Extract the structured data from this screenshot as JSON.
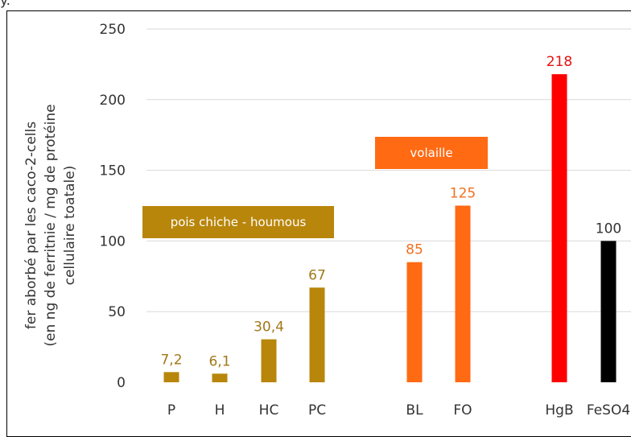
{
  "top_fragment": "y.",
  "chart_data": {
    "type": "bar",
    "ylabel": [
      "fer aborbé par les caco-2-cells",
      "(en ng de ferritnie / mg de protéine",
      "cellulaire toatale)"
    ],
    "ylim": [
      0,
      250
    ],
    "yticks": [
      0,
      50,
      100,
      150,
      200,
      250
    ],
    "grid": true,
    "categories": [
      "P",
      "H",
      "HC",
      "PC",
      "BL",
      "FO",
      "HgB",
      "FeSO4"
    ],
    "values": [
      7.2,
      6.1,
      30.4,
      67,
      85,
      125,
      218,
      100
    ],
    "data_labels": [
      "7,2",
      "6,1",
      "30,4",
      "67",
      "85",
      "125",
      "218",
      "100"
    ],
    "colors": [
      "#b8860b",
      "#b8860b",
      "#b8860b",
      "#b8860b",
      "#ff6a13",
      "#ff6a13",
      "#ff0000",
      "#000000"
    ],
    "label_colors": [
      "#a07818",
      "#a07818",
      "#a07818",
      "#a07818",
      "#f07020",
      "#f07020",
      "#e81010",
      "#333333"
    ],
    "groups": [
      {
        "label": "pois chiche - houmous",
        "color": "#b8860b"
      },
      {
        "label": "volaille",
        "color": "#ff6a13"
      }
    ]
  }
}
